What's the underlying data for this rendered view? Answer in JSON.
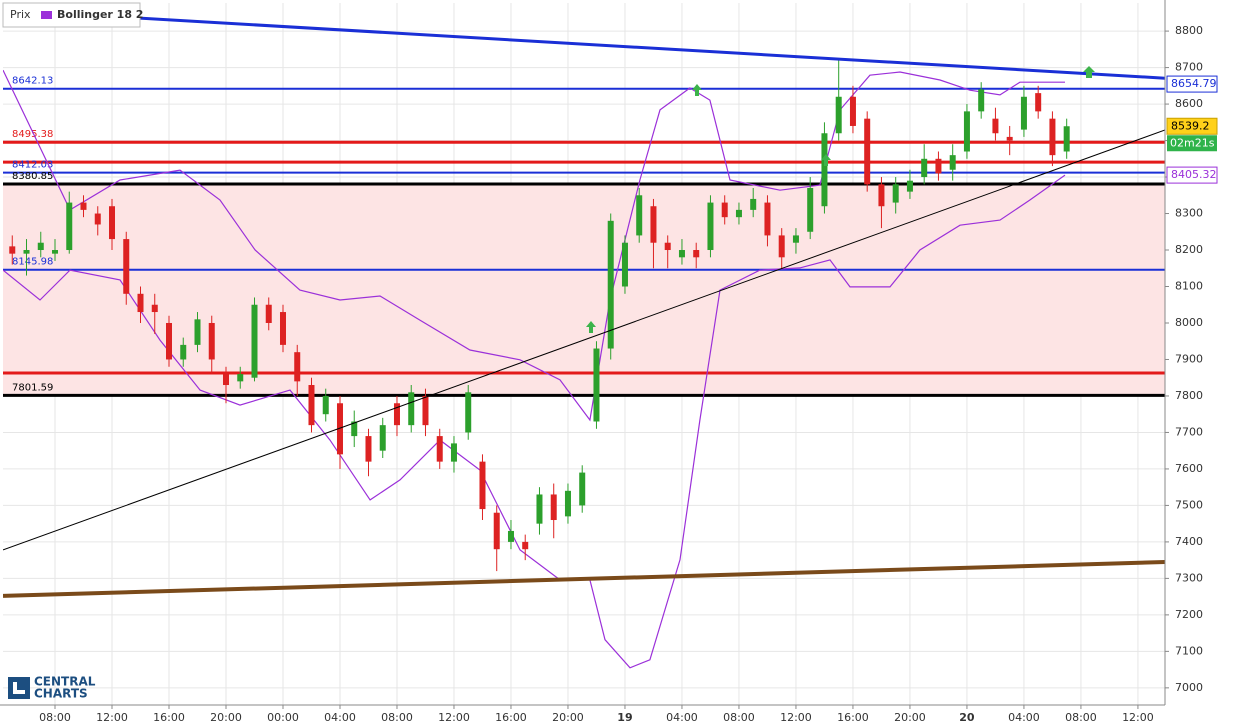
{
  "chart_data": {
    "type": "candlestick",
    "price_name": "Prix",
    "up_color": "#2ca02c",
    "down_color": "#dd2222",
    "xlim": [
      -3.65,
      77.9
    ],
    "xticks": [
      {
        "value": 0,
        "label": "08:00"
      },
      {
        "value": 4,
        "label": "12:00"
      },
      {
        "value": 8,
        "label": "16:00"
      },
      {
        "value": 12,
        "label": "20:00"
      },
      {
        "value": 16,
        "label": "00:00"
      },
      {
        "value": 20,
        "label": "04:00"
      },
      {
        "value": 24,
        "label": "08:00"
      },
      {
        "value": 28,
        "label": "12:00"
      },
      {
        "value": 32,
        "label": "16:00"
      },
      {
        "value": 36,
        "label": "20:00"
      },
      {
        "value": 40,
        "label": "19"
      },
      {
        "value": 44,
        "label": "04:00"
      },
      {
        "value": 48,
        "label": "08:00"
      },
      {
        "value": 52,
        "label": "12:00"
      },
      {
        "value": 56,
        "label": "16:00"
      },
      {
        "value": 60,
        "label": "20:00"
      },
      {
        "value": 64,
        "label": "20"
      },
      {
        "value": 68,
        "label": "04:00"
      },
      {
        "value": 72,
        "label": "08:00"
      },
      {
        "value": 76,
        "label": "12:00"
      }
    ],
    "ylim": [
      6953,
      8877
    ],
    "yticks": [
      7000,
      7100,
      7200,
      7300,
      7400,
      7500,
      7600,
      7700,
      7800,
      7900,
      8000,
      8100,
      8200,
      8300,
      8400,
      8500,
      8600,
      8700,
      8800
    ],
    "grid": true,
    "x": [
      -3,
      -2,
      -1,
      0,
      1,
      2,
      3,
      4,
      5,
      6,
      7,
      8,
      9,
      10,
      11,
      12,
      13,
      14,
      15,
      16,
      17,
      18,
      19,
      20,
      21,
      22,
      23,
      24,
      25,
      26,
      27,
      28,
      29,
      30,
      31,
      32,
      33,
      34,
      35,
      36,
      37,
      38,
      39,
      40,
      41,
      42,
      43,
      44,
      45,
      46,
      47,
      48,
      49,
      50,
      51,
      52,
      53,
      54,
      55,
      56,
      57,
      58,
      59,
      60,
      61,
      62,
      63,
      64,
      65,
      66,
      67,
      68,
      69,
      70,
      71
    ],
    "open": [
      8210,
      8190,
      8200,
      8190,
      8200,
      8330,
      8300,
      8320,
      8230,
      8080,
      8050,
      8000,
      7900,
      7940,
      8000,
      7860,
      7840,
      7850,
      8050,
      8030,
      7920,
      7830,
      7750,
      7780,
      7690,
      7690,
      7650,
      7780,
      7720,
      7800,
      7690,
      7620,
      7700,
      7620,
      7480,
      7400,
      7400,
      7450,
      7530,
      7470,
      7500,
      7730,
      7930,
      8100,
      8240,
      8320,
      8220,
      8180,
      8200,
      8200,
      8330,
      8290,
      8310,
      8330,
      8240,
      8220,
      8250,
      8320,
      8520,
      8620,
      8560,
      8380,
      8330,
      8360,
      8400,
      8450,
      8420,
      8470,
      8580,
      8560,
      8510,
      8530,
      8630,
      8560,
      8470
    ],
    "high": [
      8240,
      8230,
      8250,
      8230,
      8360,
      8350,
      8320,
      8340,
      8250,
      8100,
      8080,
      8020,
      7960,
      8030,
      8020,
      7880,
      7880,
      8070,
      8070,
      8050,
      7940,
      7850,
      7820,
      7800,
      7760,
      7710,
      7740,
      7800,
      7830,
      7820,
      7710,
      7690,
      7830,
      7640,
      7500,
      7460,
      7420,
      7550,
      7560,
      7560,
      7610,
      7950,
      8300,
      8240,
      8370,
      8340,
      8240,
      8230,
      8220,
      8350,
      8350,
      8330,
      8370,
      8350,
      8260,
      8260,
      8400,
      8550,
      8720,
      8650,
      8580,
      8400,
      8400,
      8420,
      8490,
      8470,
      8490,
      8600,
      8660,
      8590,
      8540,
      8650,
      8650,
      8580,
      8560
    ],
    "low": [
      8160,
      8130,
      8180,
      8170,
      8190,
      8290,
      8240,
      8200,
      8050,
      8000,
      7970,
      7880,
      7880,
      7920,
      7860,
      7780,
      7820,
      7840,
      7980,
      7920,
      7800,
      7700,
      7730,
      7600,
      7660,
      7580,
      7630,
      7690,
      7700,
      7690,
      7600,
      7590,
      7680,
      7460,
      7320,
      7380,
      7350,
      7420,
      7410,
      7450,
      7480,
      7710,
      7900,
      8080,
      8220,
      8150,
      8150,
      8160,
      8150,
      8180,
      8270,
      8270,
      8290,
      8210,
      8150,
      8190,
      8230,
      8300,
      8500,
      8520,
      8360,
      8260,
      8300,
      8340,
      8380,
      8390,
      8390,
      8450,
      8560,
      8500,
      8460,
      8510,
      8560,
      8430,
      8450
    ],
    "close": [
      8190,
      8200,
      8220,
      8200,
      8330,
      8310,
      8270,
      8230,
      8080,
      8030,
      8030,
      7900,
      7940,
      8010,
      7900,
      7830,
      7860,
      8050,
      8000,
      7940,
      7840,
      7720,
      7800,
      7640,
      7730,
      7620,
      7720,
      7720,
      7810,
      7720,
      7620,
      7670,
      7810,
      7490,
      7380,
      7430,
      7380,
      7530,
      7460,
      7540,
      7590,
      7930,
      8280,
      8220,
      8350,
      8220,
      8200,
      8200,
      8180,
      8330,
      8290,
      8310,
      8340,
      8240,
      8180,
      8240,
      8370,
      8520,
      8620,
      8540,
      8380,
      8320,
      8380,
      8390,
      8450,
      8410,
      8460,
      8580,
      8640,
      8520,
      8500,
      8620,
      8580,
      8460,
      8539.2
    ],
    "bollinger": {
      "name": "Bollinger 18 2",
      "color": "#9b30d9",
      "upper": {
        "x": [
          -3.65,
          1.05,
          4.56,
          8.77,
          11.58,
          14.04,
          17.19,
          20.0,
          22.81,
          25.61,
          29.12,
          32.63,
          35.44,
          37.54,
          38.95,
          41.05,
          42.46,
          44.56,
          45.96,
          47.37,
          50.88,
          53.68,
          55.09,
          57.19,
          59.3,
          62.11,
          64.21,
          66.32,
          67.72,
          70.88
        ],
        "values": [
          8693,
          8310,
          8392,
          8419,
          8337,
          8200,
          8090,
          8063,
          8074,
          8008,
          7926,
          7899,
          7844,
          7734,
          8063,
          8392,
          8584,
          8644,
          8611,
          8392,
          8364,
          8378,
          8584,
          8679,
          8688,
          8666,
          8638,
          8625,
          8660,
          8660
        ]
      },
      "lower": {
        "x": [
          -3.65,
          -1.05,
          1.05,
          4.56,
          7.37,
          10.18,
          12.98,
          16.49,
          19.3,
          22.11,
          24.21,
          27.02,
          29.82,
          32.63,
          35.44,
          37.54,
          38.6,
          40.35,
          41.75,
          43.86,
          45.26,
          46.67,
          49.47,
          52.28,
          54.39,
          55.79,
          58.6,
          60.7,
          63.51,
          66.32,
          68.42,
          70.88
        ],
        "values": [
          8145,
          8063,
          8145,
          8118,
          7953,
          7816,
          7775,
          7816,
          7679,
          7515,
          7570,
          7679,
          7597,
          7378,
          7296,
          7296,
          7132,
          7055,
          7077,
          7351,
          7734,
          8090,
          8145,
          8151,
          8173,
          8099,
          8099,
          8200,
          8268,
          8282,
          8337,
          8405.32
        ]
      }
    },
    "levels": [
      {
        "value": 8642.13,
        "color": "#1a2fd6",
        "label_shown": true
      },
      {
        "value": 8495.38,
        "color": "#e31a1a",
        "label_shown": true
      },
      {
        "value": 8441,
        "color": "#e31a1a",
        "label_shown": false
      },
      {
        "value": 8412.03,
        "color": "#1a2fd6",
        "label_shown": true
      },
      {
        "value": 8380.85,
        "color": "#000000",
        "label_shown": true
      },
      {
        "value": 8145.98,
        "color": "#1a2fd6",
        "label_shown": true
      },
      {
        "value": 7863,
        "color": "#e31a1a",
        "label_shown": false
      },
      {
        "value": 7801.59,
        "color": "#000000",
        "label_shown": true
      }
    ],
    "trendlines": [
      {
        "x": [
          -3.65,
          77.9
        ],
        "values": [
          8857.5,
          8671
        ],
        "color": "#1a2fd6"
      },
      {
        "x": [
          -3.65,
          77.9
        ],
        "values": [
          7378,
          8529
        ],
        "color": "#000000"
      },
      {
        "x": [
          -3.65,
          77.9
        ],
        "values": [
          7252,
          7345
        ],
        "color": "#7a4a1a"
      }
    ],
    "price_tags": [
      {
        "value": 8654.79,
        "color": "#ffffff",
        "border": "#1a2fd6",
        "text_color": "#1a2fd6"
      },
      {
        "value": 8539.2,
        "color": "#ffd11a",
        "border": "#c9a000",
        "text_color": "#000000"
      },
      {
        "value": 8405.32,
        "color": "#ffffff",
        "border": "#9b30d9",
        "text_color": "#9b30d9"
      }
    ],
    "countdown": "02m21s",
    "logo_lines": [
      "CENTRAL",
      "CHARTS"
    ]
  }
}
